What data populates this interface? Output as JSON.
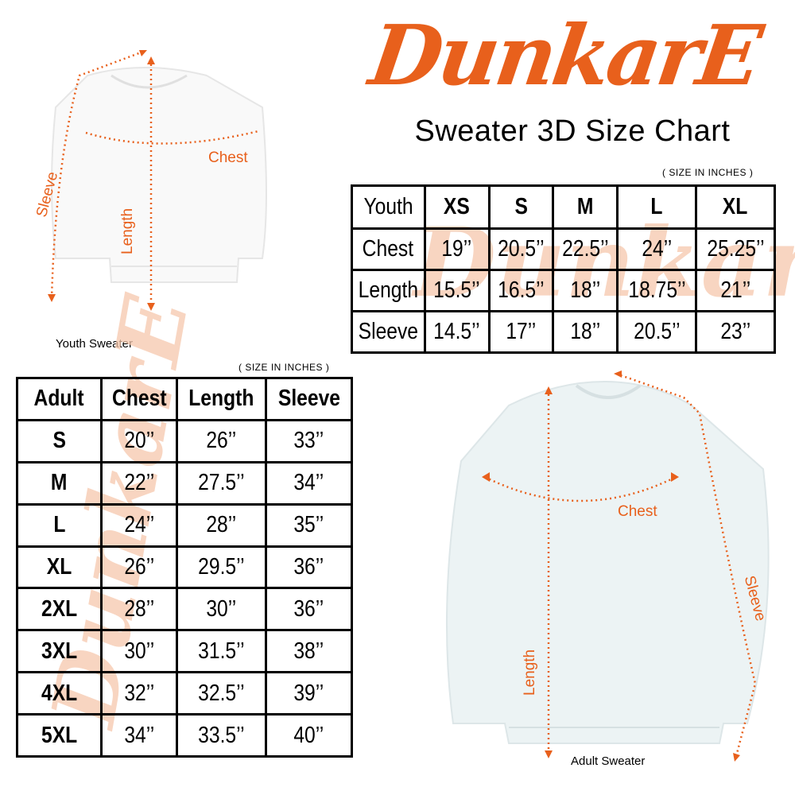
{
  "brand": {
    "logo_text": "DunkarE",
    "color": "#e8601c"
  },
  "title": "Sweater 3D Size Chart",
  "youth": {
    "unit_note": "( SIZE IN INCHES )",
    "caption": "Youth Sweater",
    "header": [
      "Youth",
      "XS",
      "S",
      "M",
      "L",
      "XL"
    ],
    "rows": [
      [
        "Chest",
        "19’’",
        "20.5’’",
        "22.5’’",
        "24’’",
        "25.25’’"
      ],
      [
        "Length",
        "15.5’’",
        "16.5’’",
        "18’’",
        "18.75’’",
        "21’’"
      ],
      [
        "Sleeve",
        "14.5’’",
        "17’’",
        "18’’",
        "20.5’’",
        "23’’"
      ]
    ],
    "labels": {
      "chest": "Chest",
      "length": "Length",
      "sleeve": "Sleeve"
    }
  },
  "adult": {
    "unit_note": "( SIZE IN INCHES )",
    "caption": "Adult Sweater",
    "header": [
      "Adult",
      "Chest",
      "Length",
      "Sleeve"
    ],
    "rows": [
      [
        "S",
        "20’’",
        "26’’",
        "33’’"
      ],
      [
        "M",
        "22’’",
        "27.5’’",
        "34’’"
      ],
      [
        "L",
        "24’’",
        "28’’",
        "35’’"
      ],
      [
        "XL",
        "26’’",
        "29.5’’",
        "36’’"
      ],
      [
        "2XL",
        "28’’",
        "30’’",
        "36’’"
      ],
      [
        "3XL",
        "30’’",
        "31.5’’",
        "38’’"
      ],
      [
        "4XL",
        "32’’",
        "32.5’’",
        "39’’"
      ],
      [
        "5XL",
        "34’’",
        "33.5’’",
        "40’’"
      ]
    ],
    "labels": {
      "chest": "Chest",
      "length": "Length",
      "sleeve": "Sleeve"
    }
  }
}
